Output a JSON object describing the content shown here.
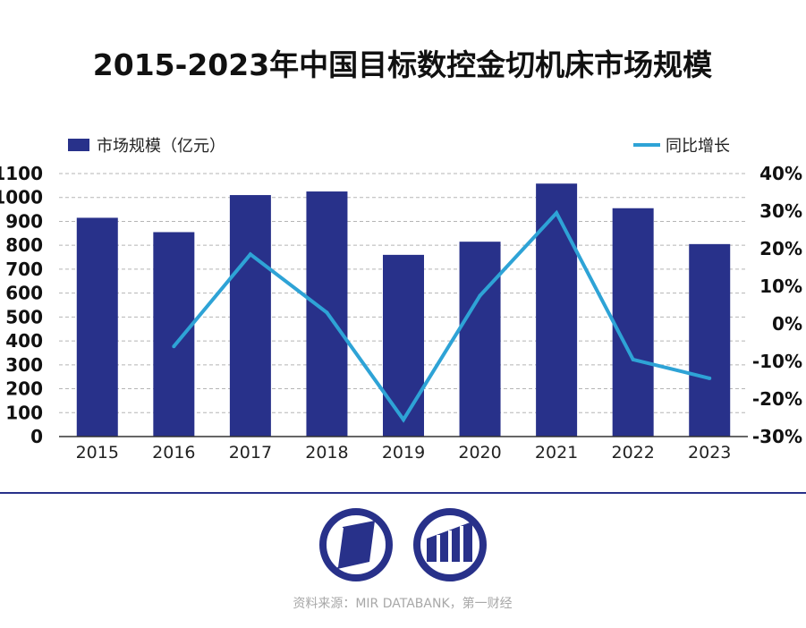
{
  "chart_data": {
    "type": "bar+line",
    "title": "2015-2023年中国目标数控金切机床市场规模",
    "categories": [
      "2015",
      "2016",
      "2017",
      "2018",
      "2019",
      "2020",
      "2021",
      "2022",
      "2023"
    ],
    "series": [
      {
        "name": "市场规模（亿元）",
        "type": "bar",
        "axis": "left",
        "color": "#28318a",
        "values": [
          915,
          855,
          1010,
          1025,
          760,
          815,
          1058,
          955,
          805
        ]
      },
      {
        "name": "同比增长",
        "type": "line",
        "axis": "right",
        "color": "#2ea3d6",
        "values": [
          null,
          -6.0,
          18.5,
          3.0,
          -25.5,
          7.5,
          29.5,
          -9.5,
          -14.5
        ]
      }
    ],
    "y_left": {
      "ylim": [
        0,
        1100
      ],
      "ticks": [
        0,
        100,
        200,
        300,
        400,
        500,
        600,
        700,
        800,
        900,
        1000,
        1100
      ],
      "tick_labels": [
        "0",
        "100",
        "200",
        "300",
        "400",
        "500",
        "600",
        "700",
        "800",
        "900",
        "1000",
        "1100"
      ]
    },
    "y_right": {
      "ylim": [
        -30,
        40
      ],
      "ticks": [
        -30,
        -20,
        -10,
        0,
        10,
        20,
        30,
        40
      ],
      "tick_labels": [
        "-30%",
        "-20%",
        "-10%",
        "0%",
        "10%",
        "20%",
        "30%",
        "40%"
      ]
    },
    "grid": "horizontal dashed",
    "legend_placement": "top"
  },
  "source_text": "资料来源：MIR DATABANK，第一财经",
  "colors": {
    "accent": "#28318a",
    "line": "#2ea3d6",
    "divider": "#28318a",
    "grid": "#b5b5b5"
  },
  "icons": [
    "parallelogram-logo-icon",
    "bar-columns-logo-icon"
  ]
}
